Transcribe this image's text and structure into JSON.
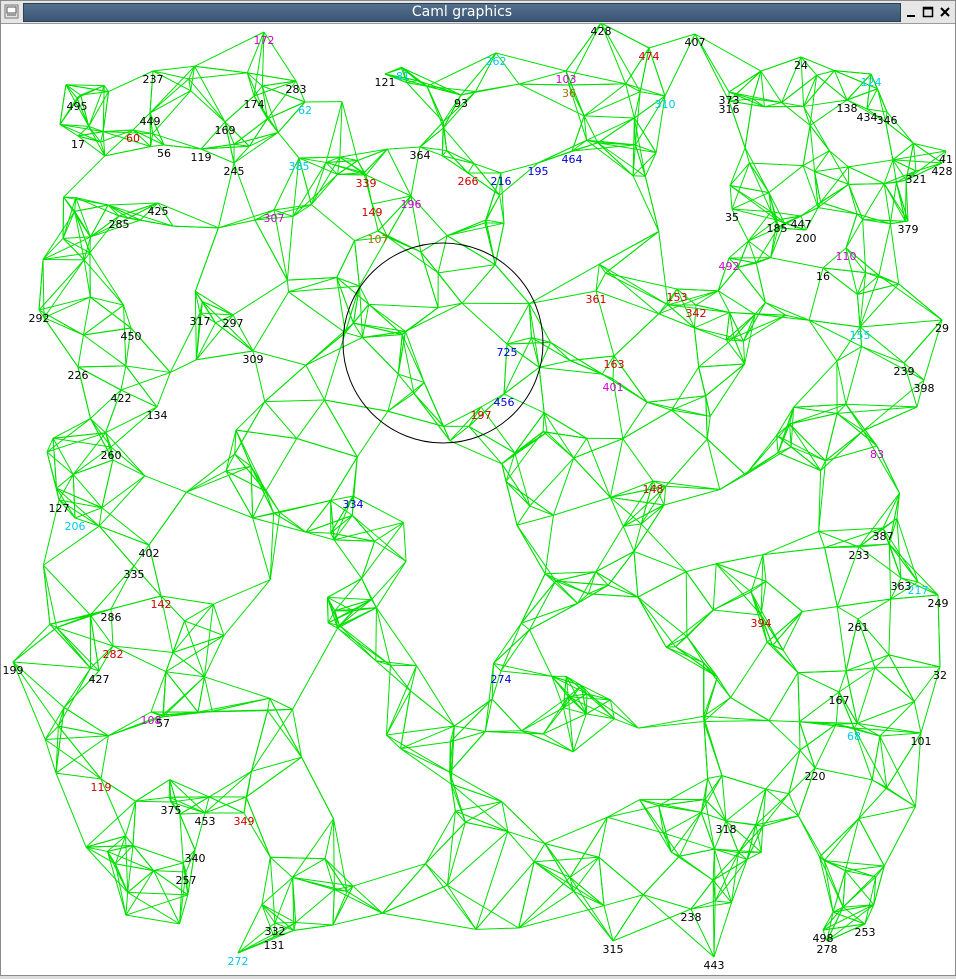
{
  "window": {
    "title": "Caml graphics"
  },
  "titlebar_buttons": [
    "minimize-icon",
    "maximize-icon",
    "close-icon"
  ],
  "colors": {
    "edge": "#00e000",
    "circle": "#000000",
    "label_black": "#000000",
    "label_red": "#cc0000",
    "label_cyan": "#00c8e8",
    "label_magenta": "#d000d0",
    "label_blue": "#0000d8",
    "label_olive": "#a07000"
  },
  "graph": {
    "edge_color": "#00e000",
    "highlight_circle": true,
    "nodes": [
      {
        "label": "428",
        "color": "#000000"
      },
      {
        "label": "474",
        "color": "#cc0000"
      },
      {
        "label": "407",
        "color": "#000000"
      },
      {
        "label": "262",
        "color": "#00c8e8"
      },
      {
        "label": "103",
        "color": "#d000d0"
      },
      {
        "label": "24",
        "color": "#000000"
      },
      {
        "label": "124",
        "color": "#00c8e8"
      },
      {
        "label": "172",
        "color": "#d000d0"
      },
      {
        "label": "237",
        "color": "#000000"
      },
      {
        "label": "283",
        "color": "#000000"
      },
      {
        "label": "121",
        "color": "#000000"
      },
      {
        "label": "81",
        "color": "#00c8e8"
      },
      {
        "label": "93",
        "color": "#000000"
      },
      {
        "label": "36",
        "color": "#a07000"
      },
      {
        "label": "373",
        "color": "#000000"
      },
      {
        "label": "316",
        "color": "#000000"
      },
      {
        "label": "138",
        "color": "#000000"
      },
      {
        "label": "434",
        "color": "#000000"
      },
      {
        "label": "346",
        "color": "#000000"
      },
      {
        "label": "495",
        "color": "#000000"
      },
      {
        "label": "174",
        "color": "#000000"
      },
      {
        "label": "62",
        "color": "#00c8e8"
      },
      {
        "label": "449",
        "color": "#000000"
      },
      {
        "label": "17",
        "color": "#000000"
      },
      {
        "label": "60",
        "color": "#cc0000"
      },
      {
        "label": "56",
        "color": "#000000"
      },
      {
        "label": "119",
        "color": "#000000"
      },
      {
        "label": "169",
        "color": "#000000"
      },
      {
        "label": "245",
        "color": "#000000"
      },
      {
        "label": "385",
        "color": "#00c8e8"
      },
      {
        "label": "364",
        "color": "#000000"
      },
      {
        "label": "266",
        "color": "#cc0000"
      },
      {
        "label": "216",
        "color": "#0000d8"
      },
      {
        "label": "195",
        "color": "#0000d8"
      },
      {
        "label": "464",
        "color": "#0000d8"
      },
      {
        "label": "310",
        "color": "#00c8e8"
      },
      {
        "label": "321",
        "color": "#000000"
      },
      {
        "label": "428b",
        "color": "#000000"
      },
      {
        "label": "41",
        "color": "#000000"
      },
      {
        "label": "339",
        "color": "#cc0000"
      },
      {
        "label": "149",
        "color": "#cc0000"
      },
      {
        "label": "196",
        "color": "#d000d0"
      },
      {
        "label": "307",
        "color": "#d000d0"
      },
      {
        "label": "285",
        "color": "#000000"
      },
      {
        "label": "425",
        "color": "#000000"
      },
      {
        "label": "35",
        "color": "#000000"
      },
      {
        "label": "107",
        "color": "#a07000"
      },
      {
        "label": "447",
        "color": "#000000"
      },
      {
        "label": "185",
        "color": "#000000"
      },
      {
        "label": "200",
        "color": "#000000"
      },
      {
        "label": "379",
        "color": "#000000"
      },
      {
        "label": "292",
        "color": "#000000"
      },
      {
        "label": "16",
        "color": "#000000"
      },
      {
        "label": "110",
        "color": "#d000d0"
      },
      {
        "label": "492",
        "color": "#d000d0"
      },
      {
        "label": "361",
        "color": "#cc0000"
      },
      {
        "label": "153",
        "color": "#cc0000"
      },
      {
        "label": "342",
        "color": "#cc0000"
      },
      {
        "label": "450",
        "color": "#000000"
      },
      {
        "label": "317",
        "color": "#000000"
      },
      {
        "label": "297",
        "color": "#000000"
      },
      {
        "label": "309",
        "color": "#000000"
      },
      {
        "label": "29",
        "color": "#000000"
      },
      {
        "label": "155",
        "color": "#00c8e8"
      },
      {
        "label": "239",
        "color": "#000000"
      },
      {
        "label": "398",
        "color": "#000000"
      },
      {
        "label": "226",
        "color": "#000000"
      },
      {
        "label": "422",
        "color": "#000000"
      },
      {
        "label": "134",
        "color": "#000000"
      },
      {
        "label": "725",
        "color": "#0000d8"
      },
      {
        "label": "456",
        "color": "#0000d8"
      },
      {
        "label": "197",
        "color": "#cc0000"
      },
      {
        "label": "401",
        "color": "#d000d0"
      },
      {
        "label": "163",
        "color": "#cc0000"
      },
      {
        "label": "83",
        "color": "#d000d0"
      },
      {
        "label": "260",
        "color": "#000000"
      },
      {
        "label": "127",
        "color": "#000000"
      },
      {
        "label": "206",
        "color": "#00c8e8"
      },
      {
        "label": "402",
        "color": "#000000"
      },
      {
        "label": "335",
        "color": "#000000"
      },
      {
        "label": "334",
        "color": "#0000d8"
      },
      {
        "label": "148",
        "color": "#cc0000"
      },
      {
        "label": "387",
        "color": "#000000"
      },
      {
        "label": "233",
        "color": "#000000"
      },
      {
        "label": "363",
        "color": "#000000"
      },
      {
        "label": "217",
        "color": "#00c8e8"
      },
      {
        "label": "249",
        "color": "#000000"
      },
      {
        "label": "142",
        "color": "#cc0000"
      },
      {
        "label": "286",
        "color": "#000000"
      },
      {
        "label": "282",
        "color": "#cc0000"
      },
      {
        "label": "261",
        "color": "#000000"
      },
      {
        "label": "394",
        "color": "#cc0000"
      },
      {
        "label": "199",
        "color": "#000000"
      },
      {
        "label": "427",
        "color": "#000000"
      },
      {
        "label": "274",
        "color": "#0000d8"
      },
      {
        "label": "32",
        "color": "#000000"
      },
      {
        "label": "167",
        "color": "#000000"
      },
      {
        "label": "108",
        "color": "#d000d0"
      },
      {
        "label": "57",
        "color": "#000000"
      },
      {
        "label": "68",
        "color": "#00c8e8"
      },
      {
        "label": "101",
        "color": "#000000"
      },
      {
        "label": "119b",
        "color": "#cc0000"
      },
      {
        "label": "375",
        "color": "#000000"
      },
      {
        "label": "453",
        "color": "#000000"
      },
      {
        "label": "349",
        "color": "#cc0000"
      },
      {
        "label": "220",
        "color": "#000000"
      },
      {
        "label": "318",
        "color": "#000000"
      },
      {
        "label": "340",
        "color": "#000000"
      },
      {
        "label": "257",
        "color": "#000000"
      },
      {
        "label": "238",
        "color": "#000000"
      },
      {
        "label": "332",
        "color": "#000000"
      },
      {
        "label": "131",
        "color": "#000000"
      },
      {
        "label": "272",
        "color": "#00c8e8"
      },
      {
        "label": "315",
        "color": "#000000"
      },
      {
        "label": "443",
        "color": "#000000"
      },
      {
        "label": "253",
        "color": "#000000"
      },
      {
        "label": "498",
        "color": "#000000"
      },
      {
        "label": "278",
        "color": "#000000"
      }
    ]
  }
}
